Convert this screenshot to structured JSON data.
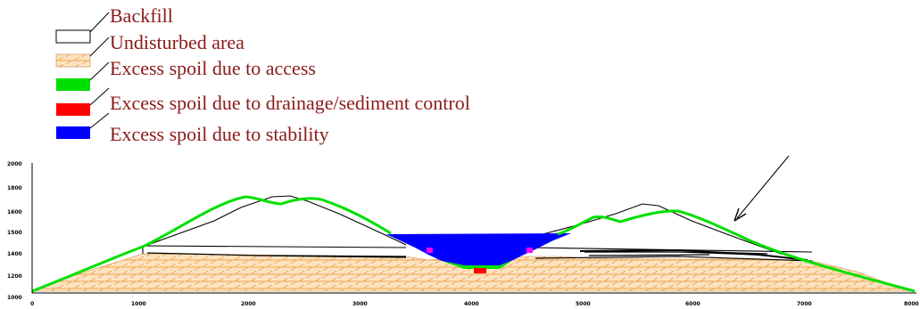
{
  "legend": [
    {
      "label": "Backfill",
      "swatch": "white-outline"
    },
    {
      "label": "Undisturbed area",
      "swatch": "hatched-tan"
    },
    {
      "label": "Excess spoil due to access",
      "swatch": "#00e000"
    },
    {
      "label": "Excess spoil due to drainage/sediment control",
      "swatch": "#ff0000"
    },
    {
      "label": "Excess spoil due to stability",
      "swatch": "#0000ff"
    }
  ],
  "axis": {
    "x_ticks": [
      "0",
      "1000",
      "2000",
      "3000",
      "4000",
      "5000",
      "6000",
      "7000",
      "8000"
    ],
    "y_ticks": [
      "2000",
      "1800",
      "1600",
      "1500",
      "1400",
      "1200",
      "1000"
    ]
  },
  "colors": {
    "legend_text": "#8b1a1a",
    "undisturbed_fill": "#fbe3c2",
    "undisturbed_hatch": "#f3a64e",
    "access": "#00e000",
    "drainage": "#ff0000",
    "stability": "#0000ff",
    "highlight": "#ff00ff"
  },
  "annotations": {
    "arrow": "arrow-icon"
  }
}
